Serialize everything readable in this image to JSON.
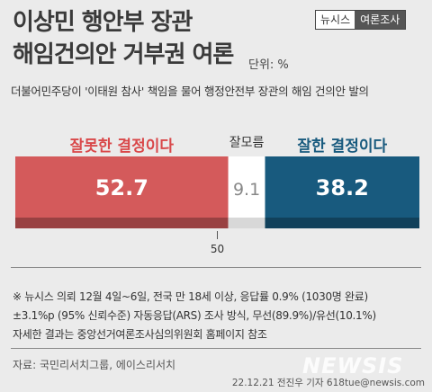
{
  "title_line1": "이상민 행안부 장관",
  "title_line2": "해임건의안 거부권 여론",
  "unit": "단위: %",
  "brand": {
    "left": "뉴시스",
    "right": "여론조사"
  },
  "subtitle": "더불어민주당이 '이태원 참사' 책임을 물어 행정안전부 장관의 해임 건의안 발의",
  "chart_data": {
    "type": "bar",
    "orientation": "horizontal-stacked",
    "categories": [
      "잘못한 결정이다",
      "잘모름",
      "잘한 결정이다"
    ],
    "values": [
      52.7,
      9.1,
      38.2
    ],
    "value_labels": [
      "52.7",
      "9.1",
      "38.2"
    ],
    "colors": [
      "#d45a5b",
      "#ffffff",
      "#185a7e"
    ],
    "label_colors": [
      "#d9484a",
      "#333333",
      "#185a7e"
    ],
    "axis_marker": {
      "value": 50,
      "label": "50"
    },
    "xlim": [
      0,
      100
    ]
  },
  "notes": [
    "※ 뉴시스 의뢰 12월 4일~6일, 전국 만 18세 이상, 응답률 0.9% (1030명 완료)",
    "±3.1%p (95% 신뢰수준) 자동응답(ARS) 조사 방식, 무선(89.9%)/유선(10.1%)",
    "자세한 결과는 중앙선거여론조사심의위원회 홈페이지 참조"
  ],
  "source": "자료: 국민리서치그룹, 에이스리서치",
  "credit": "22.12.21 전진우 기자 618tue@newsis.com",
  "watermark": "NEWSIS"
}
